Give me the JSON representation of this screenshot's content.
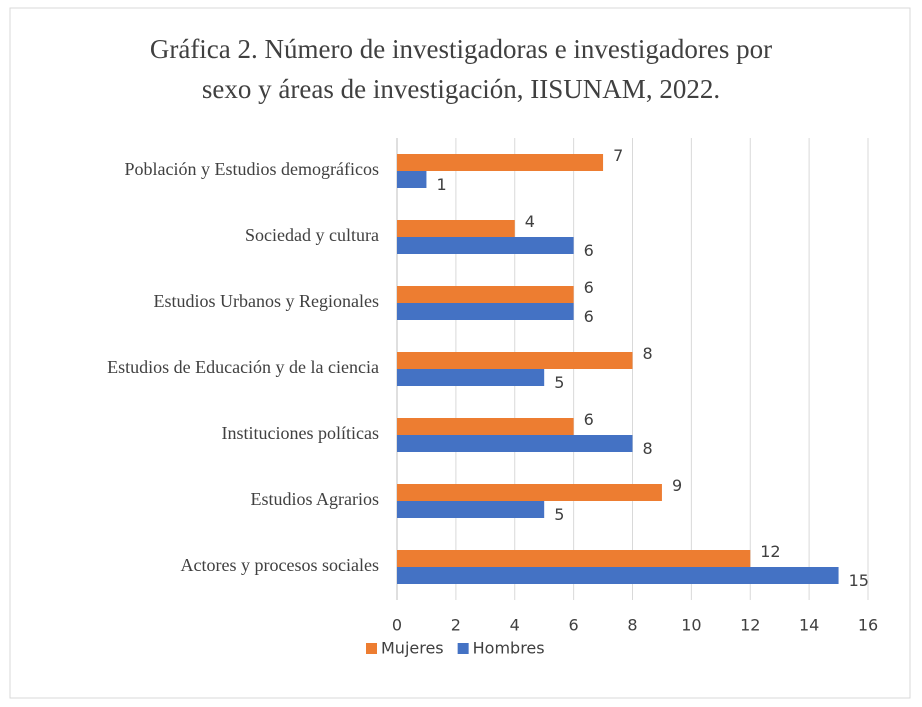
{
  "chart_data": {
    "type": "bar",
    "orientation": "horizontal",
    "title_lines": [
      "Gráfica 2. Número de investigadoras e investigadores por",
      "sexo y áreas de investigación, IISUNAM, 2022."
    ],
    "categories": [
      "Población y Estudios demográficos",
      "Sociedad y cultura",
      "Estudios Urbanos y Regionales",
      "Estudios de Educación y de la ciencia",
      "Instituciones políticas",
      "Estudios Agrarios",
      "Actores y procesos sociales"
    ],
    "series": [
      {
        "name": "Mujeres",
        "color": "#ed7d31",
        "values": [
          7,
          4,
          6,
          8,
          6,
          9,
          12
        ]
      },
      {
        "name": "Hombres",
        "color": "#4472c4",
        "values": [
          1,
          6,
          6,
          5,
          8,
          5,
          15
        ]
      }
    ],
    "xlim": [
      0,
      16
    ],
    "xticks": [
      0,
      2,
      4,
      6,
      8,
      10,
      12,
      14,
      16
    ],
    "grid": true,
    "legend": "bottom"
  }
}
